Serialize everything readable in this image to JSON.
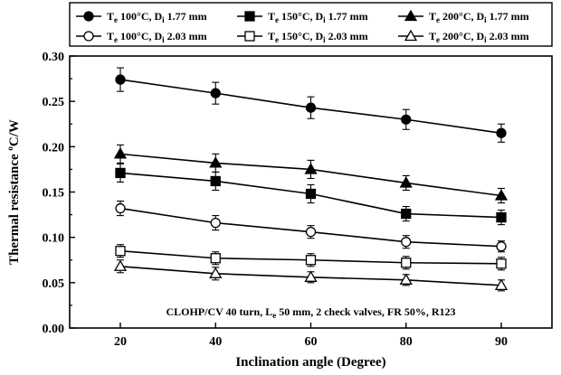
{
  "chart_data": {
    "type": "line",
    "xlabel": "Inclination angle (Degree)",
    "ylabel": "Thermal resistance °C/W",
    "ylabel_parts": [
      "Thermal resistance ",
      "o",
      "C/W"
    ],
    "categories": [
      "20",
      "40",
      "60",
      "80",
      "90"
    ],
    "ylim": [
      0.0,
      0.3
    ],
    "yticks": [
      "0.00",
      "0.05",
      "0.10",
      "0.15",
      "0.20",
      "0.25",
      "0.30"
    ],
    "grid": false,
    "legend_position": "top",
    "annotation_parts": [
      "CLOHP/CV 40 turn, L",
      "e",
      " 50 mm, 2 check valves, FR 50%, R123"
    ],
    "series": [
      {
        "name": "Te 100°C, Di 1.77 mm",
        "name_parts": [
          "T",
          "e",
          " 100°C, D",
          "i",
          " 1.77 mm"
        ],
        "marker": "circle",
        "fill": "filled",
        "values": [
          0.274,
          0.259,
          0.243,
          0.23,
          0.215
        ],
        "errors": [
          0.013,
          0.012,
          0.012,
          0.011,
          0.01
        ]
      },
      {
        "name": "Te 150°C, Di 1.77 mm",
        "name_parts": [
          "T",
          "e",
          " 150°C, D",
          "i",
          " 1.77 mm"
        ],
        "marker": "square",
        "fill": "filled",
        "values": [
          0.171,
          0.162,
          0.148,
          0.126,
          0.122
        ],
        "errors": [
          0.01,
          0.01,
          0.01,
          0.008,
          0.008
        ]
      },
      {
        "name": "Te 200°C, Di 1.77 mm",
        "name_parts": [
          "T",
          "e",
          " 200°C, D",
          "i",
          " 1.77 mm"
        ],
        "marker": "triangle",
        "fill": "filled",
        "values": [
          0.192,
          0.182,
          0.175,
          0.16,
          0.146
        ],
        "errors": [
          0.01,
          0.01,
          0.01,
          0.008,
          0.008
        ]
      },
      {
        "name": "Te 100°C, Di 2.03 mm",
        "name_parts": [
          "T",
          "e",
          " 100°C, D",
          "i",
          " 2.03 mm"
        ],
        "marker": "circle",
        "fill": "open",
        "values": [
          0.132,
          0.116,
          0.106,
          0.095,
          0.09
        ],
        "errors": [
          0.008,
          0.008,
          0.007,
          0.007,
          0.006
        ]
      },
      {
        "name": "Te 150°C, Di 2.03 mm",
        "name_parts": [
          "T",
          "e",
          " 150°C, D",
          "i",
          " 2.03 mm"
        ],
        "marker": "square",
        "fill": "open",
        "values": [
          0.085,
          0.077,
          0.075,
          0.072,
          0.071
        ],
        "errors": [
          0.007,
          0.007,
          0.007,
          0.007,
          0.007
        ]
      },
      {
        "name": "Te 200°C, Di 2.03 mm",
        "name_parts": [
          "T",
          "e",
          " 200°C, D",
          "i",
          " 2.03 mm"
        ],
        "marker": "triangle",
        "fill": "open",
        "values": [
          0.068,
          0.06,
          0.056,
          0.053,
          0.047
        ],
        "errors": [
          0.007,
          0.007,
          0.006,
          0.006,
          0.006
        ]
      }
    ]
  }
}
